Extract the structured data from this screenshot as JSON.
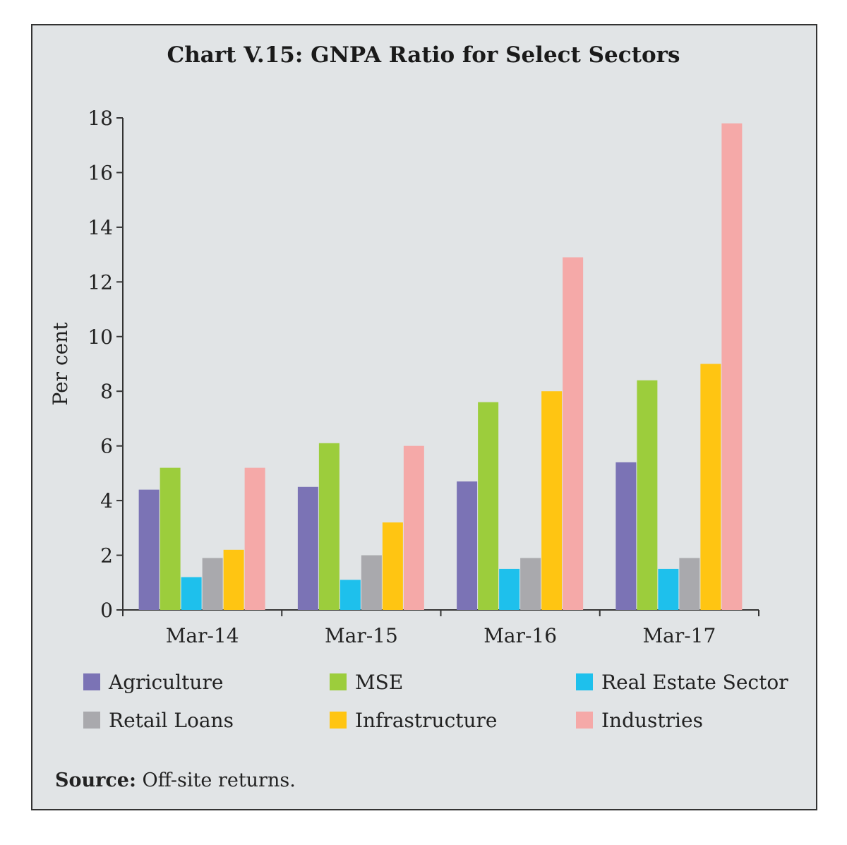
{
  "chart_data": {
    "type": "bar",
    "title": "Chart V.15: GNPA Ratio for Select Sectors",
    "ylabel": "Per cent",
    "xlabel": "",
    "ylim": [
      0,
      18
    ],
    "yticks": [
      0,
      2,
      4,
      6,
      8,
      10,
      12,
      14,
      16,
      18
    ],
    "categories": [
      "Mar-14",
      "Mar-15",
      "Mar-16",
      "Mar-17"
    ],
    "series": [
      {
        "name": "Agriculture",
        "color": "#7b73b5",
        "values": [
          4.4,
          4.5,
          4.7,
          5.4
        ]
      },
      {
        "name": "MSE",
        "color": "#9ccd3c",
        "values": [
          5.2,
          6.1,
          7.6,
          8.4
        ]
      },
      {
        "name": "Real Estate Sector",
        "color": "#1ec0ec",
        "values": [
          1.2,
          1.1,
          1.5,
          1.5
        ]
      },
      {
        "name": "Retail Loans",
        "color": "#a9a9ad",
        "values": [
          1.9,
          2.0,
          1.9,
          1.9
        ]
      },
      {
        "name": "Infrastructure",
        "color": "#ffc512",
        "values": [
          2.2,
          3.2,
          8.0,
          9.0
        ]
      },
      {
        "name": "Industries",
        "color": "#f5a9a8",
        "values": [
          5.2,
          6.0,
          12.9,
          17.8
        ]
      }
    ],
    "legend_position": "bottom",
    "grid": false
  },
  "source": {
    "label": "Source:",
    "text": "Off-site returns."
  }
}
